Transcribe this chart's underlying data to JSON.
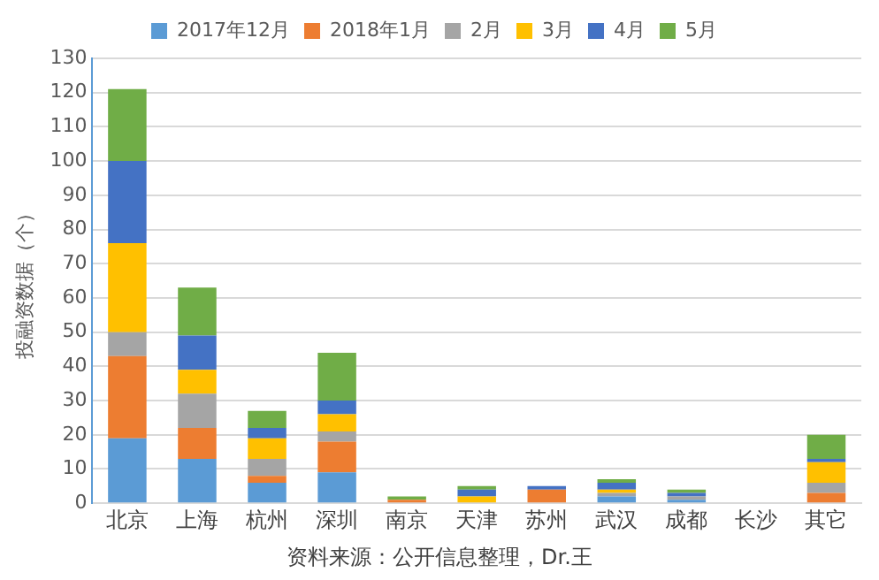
{
  "chart_data": {
    "type": "bar",
    "stacked": true,
    "ylabel": "投融资数据（个）",
    "categories": [
      "北京",
      "上海",
      "杭州",
      "深圳",
      "南京",
      "天津",
      "苏州",
      "武汉",
      "成都",
      "长沙",
      "其它"
    ],
    "series": [
      {
        "name": "2017年12月",
        "color": "#5b9bd5",
        "values": [
          19,
          13,
          6,
          9,
          0,
          0,
          0,
          2,
          1,
          0,
          0
        ]
      },
      {
        "name": "2018年1月",
        "color": "#ed7d31",
        "values": [
          24,
          9,
          2,
          9,
          1,
          0,
          4,
          0,
          0,
          0,
          3
        ]
      },
      {
        "name": "2月",
        "color": "#a5a5a5",
        "values": [
          7,
          10,
          5,
          3,
          0,
          0,
          0,
          1,
          1,
          0,
          3
        ]
      },
      {
        "name": "3月",
        "color": "#ffc000",
        "values": [
          26,
          7,
          6,
          5,
          0,
          2,
          0,
          1,
          0,
          0,
          6
        ]
      },
      {
        "name": "4月",
        "color": "#4472c4",
        "values": [
          24,
          10,
          3,
          4,
          0,
          2,
          1,
          2,
          1,
          0,
          1
        ]
      },
      {
        "name": "5月",
        "color": "#70ad47",
        "values": [
          21,
          14,
          5,
          14,
          1,
          1,
          0,
          1,
          1,
          0,
          7
        ]
      }
    ],
    "ylim": [
      0,
      130
    ],
    "yticks": [
      0,
      10,
      20,
      30,
      40,
      50,
      60,
      70,
      80,
      90,
      100,
      110,
      120,
      130
    ],
    "grid": "y",
    "legend": "top",
    "annotations": [
      "资料来源：公开信息整理，Dr.王"
    ]
  }
}
